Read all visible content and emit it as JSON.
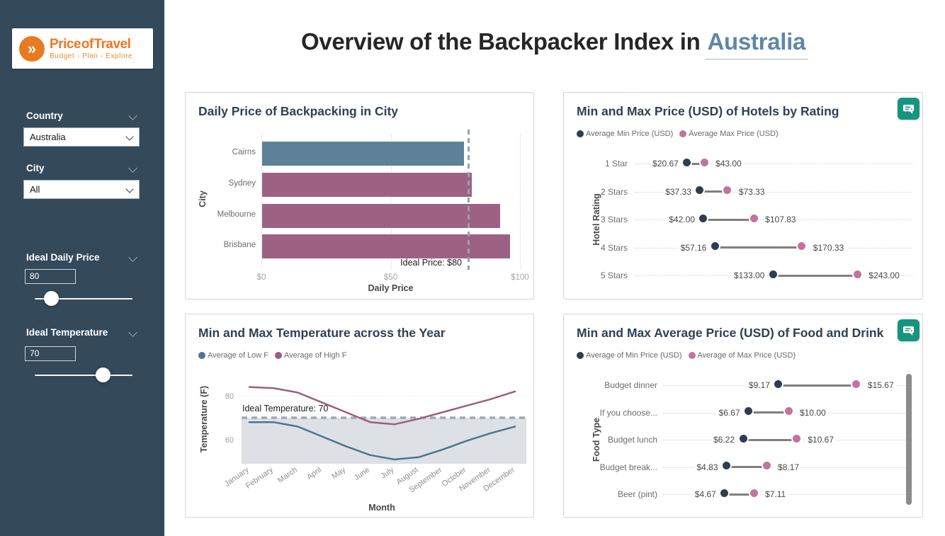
{
  "theme": {
    "sidebar_bg": "#344a5b",
    "accent_orange": "#ee7623",
    "highlight_blue": "#5f87a5",
    "min_color": "#2c3e50",
    "max_color": "#c2739e",
    "bar_blue": "#5c8199",
    "bar_mauve": "#9d6283",
    "low_line_color": "#4d7590",
    "high_line_color": "#9a607f",
    "comment_icon_color": "#15947e"
  },
  "sidebar": {
    "logo": {
      "title": "Price of Travel",
      "subtitle": "Budget - Plan - Explore"
    },
    "filters": [
      {
        "id": "country",
        "label": "Country",
        "value": "Australia"
      },
      {
        "id": "city",
        "label": "City",
        "value": "All"
      }
    ],
    "sliders": [
      {
        "id": "ideal_daily_price",
        "label": "Ideal Daily Price",
        "value": "80",
        "percent": 17
      },
      {
        "id": "ideal_temperature",
        "label": "Ideal Temperature",
        "value": "70",
        "percent": 70
      }
    ]
  },
  "header": {
    "title": "Overview of the Backpacker Index in",
    "highlight": "Australia"
  },
  "chart_data": [
    {
      "id": "daily_price",
      "type": "bar",
      "orientation": "horizontal",
      "title": "Daily Price of Backpacking in City",
      "categories": [
        "Cairns",
        "Sydney",
        "Melbourne",
        "Brisbane"
      ],
      "values": [
        78,
        81,
        92,
        96
      ],
      "bar_colors": [
        "#5c8199",
        "#9d6283",
        "#9d6283",
        "#9d6283"
      ],
      "xlabel": "Daily Price",
      "ylabel": "City",
      "xlim": [
        0,
        100
      ],
      "x_ticks": [
        {
          "value": 0,
          "label": "$0"
        },
        {
          "value": 50,
          "label": "$50"
        },
        {
          "value": 100,
          "label": "$100"
        }
      ],
      "reference_line": {
        "value": 80,
        "label": "Ideal Price: $80"
      },
      "grid": "vertical-dotted",
      "legend_position": "none"
    },
    {
      "id": "hotels",
      "type": "dumbbell",
      "title": "Min and Max Price (USD) of Hotels by Rating",
      "ylabel": "Hotel Rating",
      "categories": [
        "1 Star",
        "2 Stars",
        "3 Stars",
        "4 Stars",
        "5 Stars"
      ],
      "series": [
        {
          "name": "Average Min Price (USD)",
          "color": "#2c3e50",
          "values": [
            20.67,
            37.33,
            42.0,
            57.16,
            133.0
          ],
          "labels": [
            "$20.67",
            "$37.33",
            "$42.00",
            "$57.16",
            "$133.00"
          ]
        },
        {
          "name": "Average Max Price (USD)",
          "color": "#c2739e",
          "values": [
            43.0,
            73.33,
            107.83,
            170.33,
            243.0
          ],
          "labels": [
            "$43.00",
            "$73.33",
            "$107.83",
            "$170.33",
            "$243.00"
          ]
        }
      ],
      "legend_position": "top",
      "has_comment_button": true
    },
    {
      "id": "temperature",
      "type": "line",
      "title": "Min and Max Temperature across the Year",
      "xlabel": "Month",
      "ylabel": "Temperature (F)",
      "x": [
        "January",
        "February",
        "March",
        "April",
        "May",
        "June",
        "July",
        "August",
        "September",
        "October",
        "November",
        "December"
      ],
      "series": [
        {
          "name": "Average of Low F",
          "color": "#4d7590",
          "values": [
            68,
            68,
            66,
            61.5,
            57,
            53,
            51,
            52,
            55.5,
            59.5,
            63,
            66
          ]
        },
        {
          "name": "Average of High F",
          "color": "#9a607f",
          "values": [
            84,
            83.5,
            81.5,
            77,
            72.5,
            68,
            67,
            69.5,
            72.5,
            75.5,
            78.5,
            82
          ]
        }
      ],
      "ylim": [
        49,
        88
      ],
      "y_ticks": [
        {
          "value": 60,
          "label": "60"
        },
        {
          "value": 80,
          "label": "80"
        }
      ],
      "reference_line": {
        "value": 70,
        "label": "Ideal Temperature: 70"
      },
      "shaded_region": {
        "from": 49,
        "to": 70
      },
      "legend_position": "top"
    },
    {
      "id": "food",
      "type": "dumbbell",
      "title": "Min and Max Average Price (USD) of Food and Drink",
      "ylabel": "Food Type",
      "categories": [
        "Budget dinner",
        "If you choose...",
        "Budget lunch",
        "Budget break...",
        "Beer (pint)"
      ],
      "series": [
        {
          "name": "Average of Min Price (USD)",
          "color": "#2c3e50",
          "values": [
            9.17,
            6.67,
            6.22,
            4.83,
            4.67
          ],
          "labels": [
            "$9.17",
            "$6.67",
            "$6.22",
            "$4.83",
            "$4.67"
          ]
        },
        {
          "name": "Average of Max Price (USD)",
          "color": "#c2739e",
          "values": [
            15.67,
            10.0,
            10.67,
            8.17,
            7.11
          ],
          "labels": [
            "$15.67",
            "$10.00",
            "$10.67",
            "$8.17",
            "$7.11"
          ]
        }
      ],
      "legend_position": "top",
      "has_comment_button": true,
      "has_scrollbar": true
    }
  ]
}
